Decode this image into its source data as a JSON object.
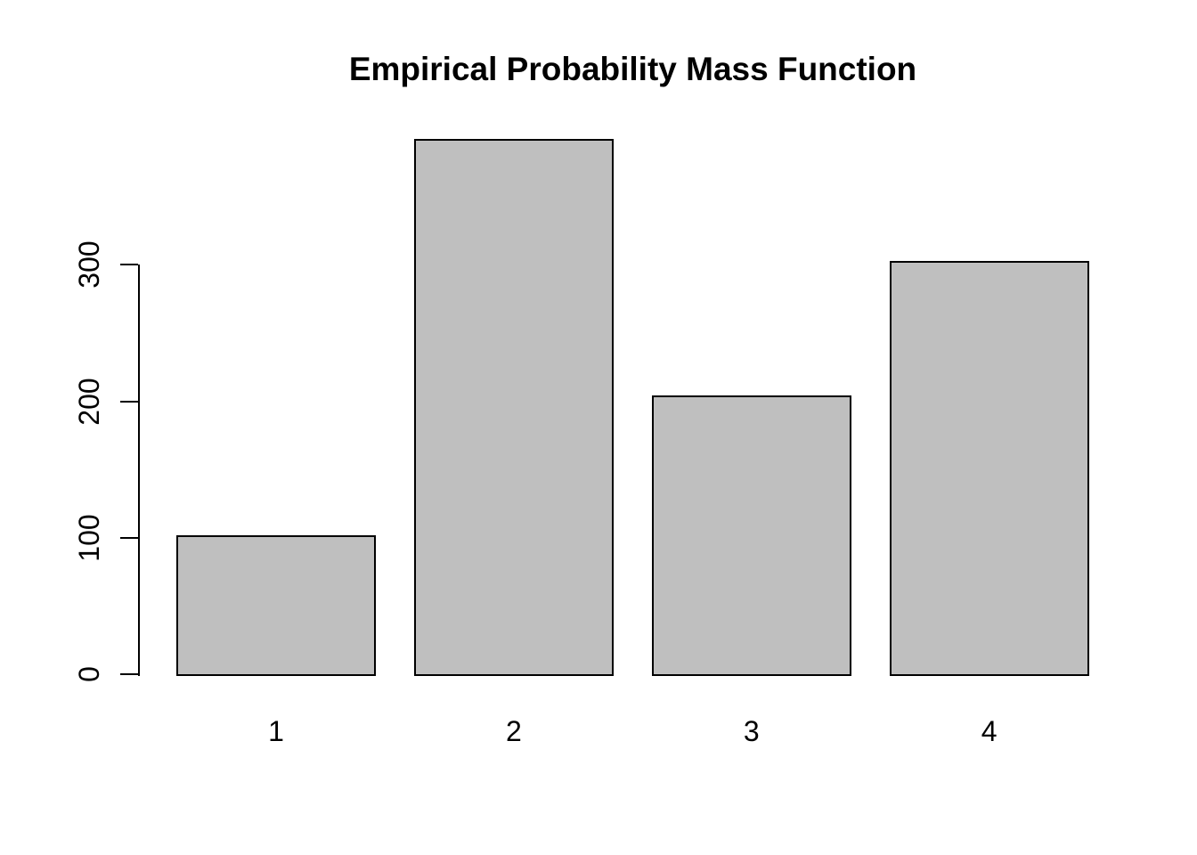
{
  "chart_data": {
    "type": "bar",
    "title": "Empirical Probability Mass Function",
    "categories": [
      "1",
      "2",
      "3",
      "4"
    ],
    "values": [
      102,
      392,
      204,
      303
    ],
    "xlabel": "",
    "ylabel": "",
    "yticks": [
      0,
      100,
      200,
      300
    ],
    "ytick_labels": [
      "0",
      "100",
      "200",
      "300"
    ],
    "ylim": [
      0,
      400
    ],
    "grid": false,
    "legend": null,
    "colors": {
      "bar_fill": "#BFBFBF",
      "bar_border": "#000000",
      "axis": "#000000",
      "text": "#000000",
      "background": "#FFFFFF"
    }
  }
}
